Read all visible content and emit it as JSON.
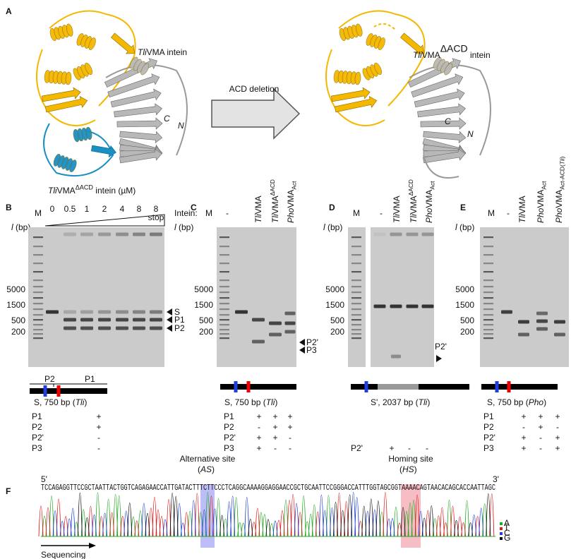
{
  "figure": {
    "A": {
      "label": "A",
      "full_title": [
        {
          "text": "Tli",
          "style": "italic"
        },
        {
          "text": "VMA intein"
        }
      ],
      "deleted_title": [
        {
          "text": "Tli",
          "style": "italic"
        },
        {
          "text": "VMA"
        },
        {
          "text": "ΔACD",
          "style": "sup"
        },
        {
          "text": " intein"
        }
      ],
      "arrow_label": "ACD deletion",
      "full_c": "C",
      "full_n": "N",
      "deleted_c": "C",
      "deleted_n": "N"
    },
    "B": {
      "label": "B",
      "title": [
        {
          "text": "Tli",
          "style": "italic"
        },
        {
          "text": "VMA"
        },
        {
          "text": "ΔACD",
          "style": "sup"
        },
        {
          "text": " intein (µM)"
        }
      ],
      "concentrations": [
        "0",
        "0.5",
        "1",
        "2",
        "4",
        "8",
        "8"
      ],
      "stop": "stop",
      "marker": "M",
      "axis_label": [
        {
          "text": "l",
          "style": "italic"
        },
        {
          "text": " (bp)"
        }
      ],
      "sizes": [
        "5000",
        "1500",
        "500",
        "200"
      ],
      "bands": [
        "S",
        "P1",
        "P2"
      ],
      "map_labels": [
        "P2",
        "P1"
      ],
      "caption": [
        {
          "text": "S, 750 bp ("
        },
        {
          "text": "Tli",
          "style": "italic"
        },
        {
          "text": ")"
        }
      ],
      "products": [
        {
          "name": "P1",
          "marks": [
            "+"
          ]
        },
        {
          "name": "P2",
          "marks": [
            "+"
          ]
        },
        {
          "name": "P2'",
          "marks": [
            "-"
          ]
        },
        {
          "name": "P3",
          "marks": [
            "-"
          ]
        }
      ]
    },
    "C": {
      "label": "C",
      "intein_label": "Intein:",
      "marker": "M",
      "negative": "-",
      "lanes": [
        [
          {
            "text": "Tli",
            "style": "italic"
          },
          {
            "text": "VMA"
          }
        ],
        [
          {
            "text": "Tli",
            "style": "italic"
          },
          {
            "text": "VMA"
          },
          {
            "text": "ΔACD",
            "style": "sup"
          }
        ],
        [
          {
            "text": "Pho",
            "style": "italic"
          },
          {
            "text": "VMA"
          },
          {
            "text": "Act",
            "style": "sub"
          }
        ]
      ],
      "axis_label": [
        {
          "text": "l",
          "style": "italic"
        },
        {
          "text": " (bp)"
        }
      ],
      "sizes": [
        "5000",
        "1500",
        "500",
        "200"
      ],
      "bands": [
        "P2'",
        "P3"
      ],
      "caption": [
        {
          "text": "S, 750 bp ("
        },
        {
          "text": "Tli",
          "style": "italic"
        },
        {
          "text": ")"
        }
      ],
      "products": [
        {
          "name": "P1",
          "marks": [
            "+",
            "+",
            "+"
          ]
        },
        {
          "name": "P2",
          "marks": [
            "-",
            "+",
            "+"
          ]
        },
        {
          "name": "P2'",
          "marks": [
            "+",
            "+",
            "-"
          ]
        },
        {
          "name": "P3",
          "marks": [
            "+",
            "-",
            "-"
          ]
        }
      ]
    },
    "D": {
      "label": "D",
      "marker": "M",
      "negative": "-",
      "lanes": [
        [
          {
            "text": "Tli",
            "style": "italic"
          },
          {
            "text": "VMA"
          }
        ],
        [
          {
            "text": "Tli",
            "style": "italic"
          },
          {
            "text": "VMA"
          },
          {
            "text": "ΔACD",
            "style": "sup"
          }
        ],
        [
          {
            "text": "Pho",
            "style": "italic"
          },
          {
            "text": "VMA"
          },
          {
            "text": "Act",
            "style": "sub"
          }
        ]
      ],
      "axis_label": [
        {
          "text": "l",
          "style": "italic"
        },
        {
          "text": " (bp)"
        }
      ],
      "sizes": [
        "5000",
        "1500",
        "500",
        "200"
      ],
      "bands": [
        "P2'"
      ],
      "caption": [
        {
          "text": "S', 2037 bp ("
        },
        {
          "text": "Tli",
          "style": "italic"
        },
        {
          "text": ")"
        }
      ],
      "products": [
        {
          "name": "P2'",
          "marks": [
            "+",
            "-",
            "-"
          ]
        }
      ]
    },
    "E": {
      "label": "E",
      "marker": "M",
      "negative": "-",
      "lanes": [
        [
          {
            "text": "Tli",
            "style": "italic"
          },
          {
            "text": "VMA"
          }
        ],
        [
          {
            "text": "Pho",
            "style": "italic"
          },
          {
            "text": "VMA"
          },
          {
            "text": "Act",
            "style": "sub"
          }
        ],
        [
          {
            "text": "Pho",
            "style": "italic"
          },
          {
            "text": "VMA"
          },
          {
            "text": "Act-ACD(",
            "style": "sub"
          },
          {
            "text": "Tli",
            "style": "sub-italic"
          },
          {
            "text": ")",
            "style": "sub"
          }
        ]
      ],
      "axis_label": [
        {
          "text": "l",
          "style": "italic"
        },
        {
          "text": " (bp)"
        }
      ],
      "sizes": [
        "5000",
        "1500",
        "500",
        "200"
      ],
      "caption": [
        {
          "text": "S, 750 bp ("
        },
        {
          "text": "Pho",
          "style": "italic"
        },
        {
          "text": ")"
        }
      ],
      "products": [
        {
          "name": "P1",
          "marks": [
            "+",
            "+",
            "+"
          ]
        },
        {
          "name": "P2",
          "marks": [
            "-",
            "+",
            "-"
          ]
        },
        {
          "name": "P2'",
          "marks": [
            "+",
            "-",
            "+"
          ]
        },
        {
          "name": "P3",
          "marks": [
            "+",
            "-",
            "+"
          ]
        }
      ]
    },
    "F": {
      "label": "F",
      "alternative_site": "Alternative site",
      "alternative_abbrev": [
        {
          "text": "("
        },
        {
          "text": "AS",
          "style": "italic"
        },
        {
          "text": ")"
        }
      ],
      "homing_site": "Homing site",
      "homing_abbrev": [
        {
          "text": "("
        },
        {
          "text": "HS",
          "style": "italic"
        },
        {
          "text": ")"
        }
      ],
      "five_prime": "5'",
      "three_prime": "3'",
      "sequence": "TCCAGAGGTTCCGCTAATTACTGGTCAGAGAACCATTGATACTTTCTTCCCTCAGGCAAAAGGAGGAACCGCTGCAATTCCGGGACCATTTGGTAGCGGTAAAACAGTAACACAGCACCAATTAGC",
      "bases": [
        "A",
        "T",
        "C",
        "G"
      ],
      "sequencing": "Sequencing"
    }
  }
}
